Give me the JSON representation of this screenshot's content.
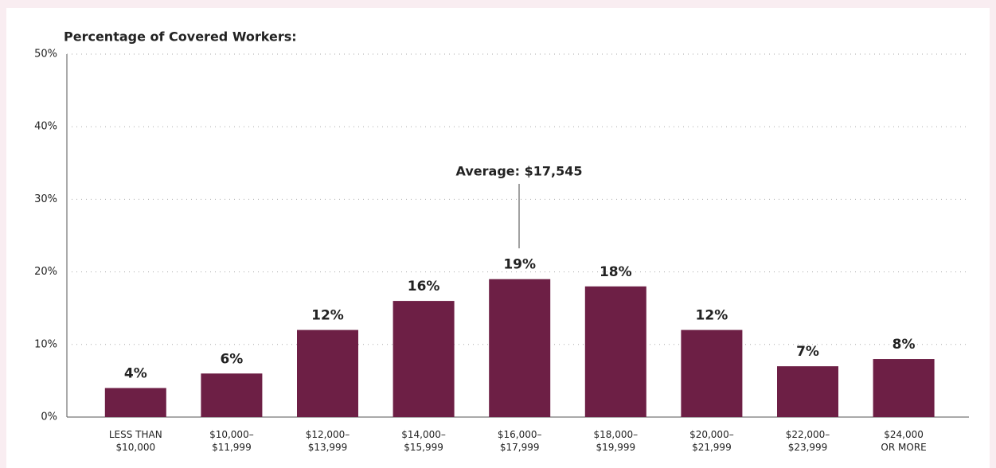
{
  "chart_data": {
    "type": "bar",
    "title": "Percentage of Covered Workers:",
    "annotation": "Average: $17,545",
    "categories": [
      "LESS THAN\n$10,000",
      "$10,000–\n$11,999",
      "$12,000–\n$13,999",
      "$14,000–\n$15,999",
      "$16,000–\n$17,999",
      "$18,000–\n$19,999",
      "$20,000–\n$21,999",
      "$22,000–\n$23,999",
      "$24,000\nOR MORE"
    ],
    "values": [
      4,
      6,
      12,
      16,
      19,
      18,
      12,
      7,
      8
    ],
    "value_labels": [
      "4%",
      "6%",
      "12%",
      "16%",
      "19%",
      "18%",
      "12%",
      "7%",
      "8%"
    ],
    "color": "#6d1f45",
    "ylim": [
      0,
      50
    ],
    "yticks": [
      {
        "value": 0,
        "label": "0%"
      },
      {
        "value": 10,
        "label": "10%"
      },
      {
        "value": 20,
        "label": "20%"
      },
      {
        "value": 30,
        "label": "30%"
      },
      {
        "value": 40,
        "label": "40%"
      },
      {
        "value": 50,
        "label": "50%"
      }
    ],
    "grid": true
  }
}
